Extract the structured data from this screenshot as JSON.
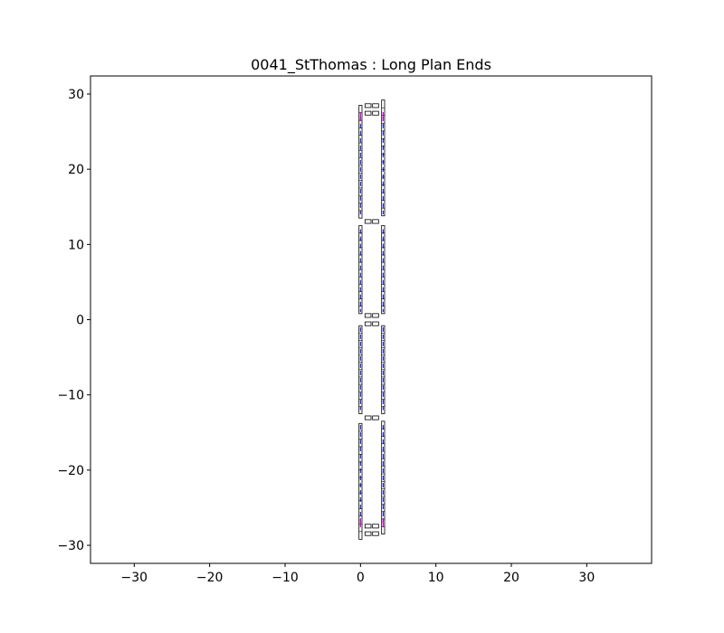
{
  "chart_data": {
    "type": "scatter",
    "title": "0041_StThomas : Long Plan Ends",
    "xlabel": "",
    "ylabel": "",
    "xlim": [
      -35.8,
      38.6
    ],
    "ylim": [
      -32.4,
      32.4
    ],
    "x_ticks": [
      -30,
      -20,
      -10,
      0,
      10,
      20,
      30
    ],
    "y_ticks": [
      -30,
      -20,
      -10,
      0,
      10,
      20,
      30
    ],
    "x_tick_labels": [
      "−30",
      "−20",
      "−10",
      "0",
      "10",
      "20",
      "30"
    ],
    "y_tick_labels": [
      "−30",
      "−20",
      "−10",
      "0",
      "10",
      "20",
      "30"
    ],
    "grid": false,
    "colors": {
      "box": "#000000",
      "blue": "#0000cc",
      "magenta": "#cc00cc"
    },
    "columns": [
      {
        "x": [
          -0.2,
          0.2
        ],
        "segments": [
          [
            13.5,
            28.5
          ],
          [
            0.8,
            12.5
          ],
          [
            -12.5,
            -0.8
          ],
          [
            -29.2,
            -13.8
          ]
        ]
      },
      {
        "x": [
          2.8,
          3.2
        ],
        "segments": [
          [
            13.8,
            29.2
          ],
          [
            0.8,
            12.5
          ],
          [
            -12.5,
            -0.8
          ],
          [
            -28.5,
            -13.5
          ]
        ]
      }
    ],
    "column_lines": [
      {
        "x": 0.0,
        "segments": [
          [
            14.0,
            27.0
          ],
          [
            1.0,
            12.0
          ],
          [
            -12.0,
            -1.0
          ],
          [
            -27.0,
            -14.0
          ]
        ]
      },
      {
        "x": 3.0,
        "segments": [
          [
            14.0,
            27.0
          ],
          [
            1.0,
            12.0
          ],
          [
            -12.0,
            -1.0
          ],
          [
            -27.0,
            -14.0
          ]
        ]
      }
    ],
    "row_boxes": [
      {
        "x": [
          0.6,
          1.4
        ],
        "y": [
          28.2,
          28.7
        ]
      },
      {
        "x": [
          1.6,
          2.4
        ],
        "y": [
          28.2,
          28.7
        ]
      },
      {
        "x": [
          0.6,
          1.4
        ],
        "y": [
          27.2,
          27.7
        ]
      },
      {
        "x": [
          1.6,
          2.4
        ],
        "y": [
          27.2,
          27.7
        ]
      },
      {
        "x": [
          0.6,
          1.4
        ],
        "y": [
          12.8,
          13.3
        ]
      },
      {
        "x": [
          1.6,
          2.4
        ],
        "y": [
          12.8,
          13.3
        ]
      },
      {
        "x": [
          0.6,
          1.4
        ],
        "y": [
          0.3,
          0.8
        ]
      },
      {
        "x": [
          1.6,
          2.4
        ],
        "y": [
          0.3,
          0.8
        ]
      },
      {
        "x": [
          0.6,
          1.4
        ],
        "y": [
          -0.8,
          -0.3
        ]
      },
      {
        "x": [
          1.6,
          2.4
        ],
        "y": [
          -0.8,
          -0.3
        ]
      },
      {
        "x": [
          0.6,
          1.4
        ],
        "y": [
          -13.3,
          -12.8
        ]
      },
      {
        "x": [
          1.6,
          2.4
        ],
        "y": [
          -13.3,
          -12.8
        ]
      },
      {
        "x": [
          0.6,
          1.4
        ],
        "y": [
          -27.7,
          -27.2
        ]
      },
      {
        "x": [
          1.6,
          2.4
        ],
        "y": [
          -27.7,
          -27.2
        ]
      },
      {
        "x": [
          0.6,
          1.4
        ],
        "y": [
          -28.7,
          -28.2
        ]
      },
      {
        "x": [
          1.6,
          2.4
        ],
        "y": [
          -28.7,
          -28.2
        ]
      }
    ],
    "magenta_marks": [
      {
        "x": 0.0,
        "y": 27.0
      },
      {
        "x": 3.0,
        "y": 27.0
      },
      {
        "x": 0.0,
        "y": -27.0
      },
      {
        "x": 3.0,
        "y": -27.0
      }
    ]
  }
}
